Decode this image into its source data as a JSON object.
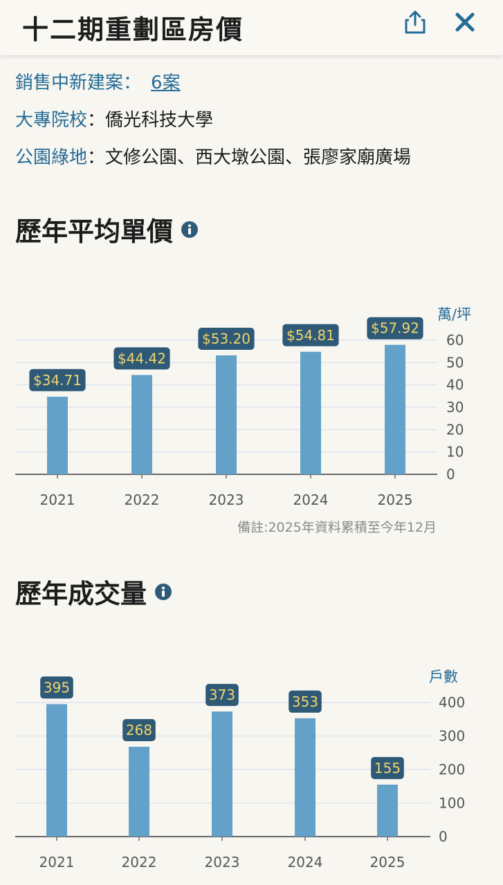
{
  "header": {
    "title": "十二期重劃區房價"
  },
  "info": {
    "sales": {
      "label": "銷售中新建案",
      "sep": "：",
      "link": "6案"
    },
    "college": {
      "label": "大專院校",
      "sep": "：",
      "value": "僑光科技大學"
    },
    "parks": {
      "label": "公園綠地",
      "sep": "：",
      "value": "文修公園、西大墩公園、張廖家廟廣場"
    }
  },
  "price_section": {
    "title": "歷年平均單價",
    "note": "備註:2025年資料累積至今年12月"
  },
  "volume_section": {
    "title": "歷年成交量"
  },
  "colors": {
    "bar": "#64a1c9",
    "badge_bg": "#2e5a78",
    "badge_text": "#f2d46a",
    "grid": "#dde4ef",
    "axis_label": "#246b96"
  },
  "chart_data": [
    {
      "type": "bar",
      "title": "歷年平均單價",
      "categories": [
        "2021",
        "2022",
        "2023",
        "2024",
        "2025"
      ],
      "values": [
        34.71,
        44.42,
        53.2,
        54.81,
        57.92
      ],
      "data_labels": [
        "$34.71",
        "$44.42",
        "$53.20",
        "$54.81",
        "$57.92"
      ],
      "unit_label": "萬/坪",
      "yticks": [
        0,
        10,
        20,
        30,
        40,
        50,
        60
      ],
      "ylim": [
        0,
        60
      ],
      "grid": true,
      "axis_position": "right"
    },
    {
      "type": "bar",
      "title": "歷年成交量",
      "categories": [
        "2021",
        "2022",
        "2023",
        "2024",
        "2025"
      ],
      "values": [
        395,
        268,
        373,
        353,
        155
      ],
      "data_labels": [
        "395",
        "268",
        "373",
        "353",
        "155"
      ],
      "unit_label": "戶數",
      "yticks": [
        0,
        100,
        200,
        300,
        400
      ],
      "ylim": [
        0,
        400
      ],
      "grid": true,
      "axis_position": "right"
    }
  ]
}
